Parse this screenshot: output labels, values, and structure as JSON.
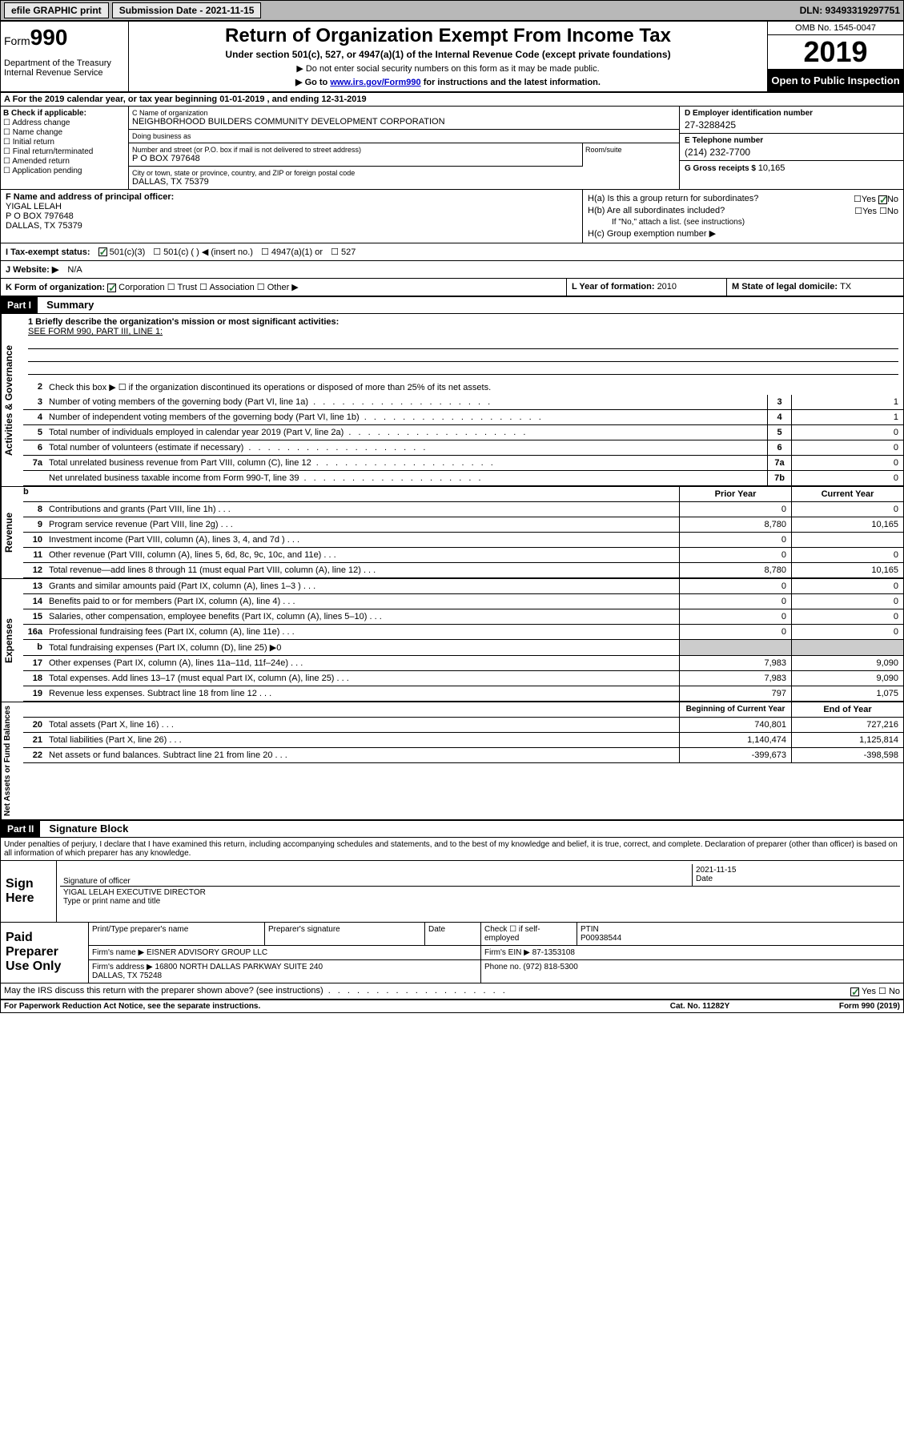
{
  "topbar": {
    "efile": "efile GRAPHIC print",
    "submission_label": "Submission Date - 2021-11-15",
    "dln": "DLN: 93493319297751"
  },
  "header": {
    "form_prefix": "Form",
    "form_number": "990",
    "dept": "Department of the Treasury\nInternal Revenue Service",
    "title": "Return of Organization Exempt From Income Tax",
    "subtitle": "Under section 501(c), 527, or 4947(a)(1) of the Internal Revenue Code (except private foundations)",
    "nosn": "▶ Do not enter social security numbers on this form as it may be made public.",
    "goto_pre": "▶ Go to ",
    "goto_link": "www.irs.gov/Form990",
    "goto_post": " for instructions and the latest information.",
    "omb": "OMB No. 1545-0047",
    "year": "2019",
    "public": "Open to Public Inspection"
  },
  "yearline": "A For the 2019 calendar year, or tax year beginning 01-01-2019    , and ending 12-31-2019",
  "B": {
    "hdr": "B Check if applicable:",
    "items": [
      "Address change",
      "Name change",
      "Initial return",
      "Final return/terminated",
      "Amended return",
      "Application pending"
    ]
  },
  "C": {
    "name_lbl": "C Name of organization",
    "name": "NEIGHBORHOOD BUILDERS COMMUNITY DEVELOPMENT CORPORATION",
    "dba_lbl": "Doing business as",
    "dba": "",
    "street_lbl": "Number and street (or P.O. box if mail is not delivered to street address)",
    "street": "P O BOX 797648",
    "suite_lbl": "Room/suite",
    "city_lbl": "City or town, state or province, country, and ZIP or foreign postal code",
    "city": "DALLAS, TX  75379"
  },
  "D": {
    "lbl": "D Employer identification number",
    "val": "27-3288425"
  },
  "E": {
    "lbl": "E Telephone number",
    "val": "(214) 232-7700"
  },
  "G": {
    "lbl": "G Gross receipts $ ",
    "val": "10,165"
  },
  "F": {
    "lbl": "F Name and address of principal officer:",
    "name": "YIGAL LELAH",
    "addr1": "P O BOX 797648",
    "addr2": "DALLAS, TX  75379"
  },
  "H": {
    "a": "H(a)  Is this a group return for subordinates?",
    "a_yes": "Yes",
    "a_no": "No",
    "b": "H(b)  Are all subordinates included?",
    "b_note": "If \"No,\" attach a list. (see instructions)",
    "c": "H(c)  Group exemption number ▶"
  },
  "I": {
    "lbl": "I   Tax-exempt status:",
    "o1": "501(c)(3)",
    "o2": "501(c) (  ) ◀ (insert no.)",
    "o3": "4947(a)(1) or",
    "o4": "527"
  },
  "J": {
    "lbl": "J   Website: ▶",
    "val": "N/A"
  },
  "K": {
    "lbl": "K Form of organization:",
    "o1": "Corporation",
    "o2": "Trust",
    "o3": "Association",
    "o4": "Other ▶"
  },
  "L": {
    "lbl": "L Year of formation: ",
    "val": "2010"
  },
  "M": {
    "lbl": "M State of legal domicile: ",
    "val": "TX"
  },
  "partI": {
    "hdr": "Part I",
    "title": "Summary",
    "mission_lbl": "1   Briefly describe the organization's mission or most significant activities:",
    "mission": "SEE FORM 990, PART III, LINE 1:",
    "line2": "Check this box ▶ ☐  if the organization discontinued its operations or disposed of more than 25% of its net assets.",
    "sections": {
      "gov": "Activities & Governance",
      "rev": "Revenue",
      "exp": "Expenses",
      "net": "Net Assets or Fund Balances"
    },
    "gov_lines": [
      {
        "n": "3",
        "t": "Number of voting members of the governing body (Part VI, line 1a)",
        "box": "3",
        "v": "1"
      },
      {
        "n": "4",
        "t": "Number of independent voting members of the governing body (Part VI, line 1b)",
        "box": "4",
        "v": "1"
      },
      {
        "n": "5",
        "t": "Total number of individuals employed in calendar year 2019 (Part V, line 2a)",
        "box": "5",
        "v": "0"
      },
      {
        "n": "6",
        "t": "Total number of volunteers (estimate if necessary)",
        "box": "6",
        "v": "0"
      },
      {
        "n": "7a",
        "t": "Total unrelated business revenue from Part VIII, column (C), line 12",
        "box": "7a",
        "v": "0"
      },
      {
        "n": "",
        "t": "Net unrelated business taxable income from Form 990-T, line 39",
        "box": "7b",
        "v": "0"
      }
    ],
    "revhdr": {
      "prior": "Prior Year",
      "current": "Current Year"
    },
    "rev_lines": [
      {
        "n": "8",
        "t": "Contributions and grants (Part VIII, line 1h)",
        "p": "0",
        "c": "0"
      },
      {
        "n": "9",
        "t": "Program service revenue (Part VIII, line 2g)",
        "p": "8,780",
        "c": "10,165"
      },
      {
        "n": "10",
        "t": "Investment income (Part VIII, column (A), lines 3, 4, and 7d )",
        "p": "0",
        "c": ""
      },
      {
        "n": "11",
        "t": "Other revenue (Part VIII, column (A), lines 5, 6d, 8c, 9c, 10c, and 11e)",
        "p": "0",
        "c": "0"
      },
      {
        "n": "12",
        "t": "Total revenue—add lines 8 through 11 (must equal Part VIII, column (A), line 12)",
        "p": "8,780",
        "c": "10,165"
      }
    ],
    "exp_lines": [
      {
        "n": "13",
        "t": "Grants and similar amounts paid (Part IX, column (A), lines 1–3 )",
        "p": "0",
        "c": "0"
      },
      {
        "n": "14",
        "t": "Benefits paid to or for members (Part IX, column (A), line 4)",
        "p": "0",
        "c": "0"
      },
      {
        "n": "15",
        "t": "Salaries, other compensation, employee benefits (Part IX, column (A), lines 5–10)",
        "p": "0",
        "c": "0"
      },
      {
        "n": "16a",
        "t": "Professional fundraising fees (Part IX, column (A), line 11e)",
        "p": "0",
        "c": "0"
      },
      {
        "n": "b",
        "t": "Total fundraising expenses (Part IX, column (D), line 25) ▶0",
        "p": "",
        "c": "",
        "shade": true
      },
      {
        "n": "17",
        "t": "Other expenses (Part IX, column (A), lines 11a–11d, 11f–24e)",
        "p": "7,983",
        "c": "9,090"
      },
      {
        "n": "18",
        "t": "Total expenses. Add lines 13–17 (must equal Part IX, column (A), line 25)",
        "p": "7,983",
        "c": "9,090"
      },
      {
        "n": "19",
        "t": "Revenue less expenses. Subtract line 18 from line 12",
        "p": "797",
        "c": "1,075"
      }
    ],
    "nethdr": {
      "prior": "Beginning of Current Year",
      "current": "End of Year"
    },
    "net_lines": [
      {
        "n": "20",
        "t": "Total assets (Part X, line 16)",
        "p": "740,801",
        "c": "727,216"
      },
      {
        "n": "21",
        "t": "Total liabilities (Part X, line 26)",
        "p": "1,140,474",
        "c": "1,125,814"
      },
      {
        "n": "22",
        "t": "Net assets or fund balances. Subtract line 21 from line 20",
        "p": "-399,673",
        "c": "-398,598"
      }
    ]
  },
  "partII": {
    "hdr": "Part II",
    "title": "Signature Block",
    "penalties": "Under penalties of perjury, I declare that I have examined this return, including accompanying schedules and statements, and to the best of my knowledge and belief, it is true, correct, and complete. Declaration of preparer (other than officer) is based on all information of which preparer has any knowledge.",
    "sign_lbl": "Sign Here",
    "sig_officer": "Signature of officer",
    "sig_date": "2021-11-15",
    "sig_date_lbl": "Date",
    "sig_name": "YIGAL LELAH  EXECUTIVE DIRECTOR",
    "sig_name_lbl": "Type or print name and title",
    "paid_lbl": "Paid Preparer Use Only",
    "prep_name_lbl": "Print/Type preparer's name",
    "prep_sig_lbl": "Preparer's signature",
    "prep_date_lbl": "Date",
    "prep_self": "Check ☐ if self-employed",
    "ptin_lbl": "PTIN",
    "ptin": "P00938544",
    "firm_name_lbl": "Firm's name    ▶",
    "firm_name": "EISNER ADVISORY GROUP LLC",
    "firm_ein_lbl": "Firm's EIN ▶",
    "firm_ein": "87-1353108",
    "firm_addr_lbl": "Firm's address ▶",
    "firm_addr": "16800 NORTH DALLAS PARKWAY SUITE 240\nDALLAS, TX  75248",
    "firm_phone_lbl": "Phone no.",
    "firm_phone": "(972) 818-5300",
    "discuss": "May the IRS discuss this return with the preparer shown above? (see instructions)",
    "discuss_yes": "Yes",
    "discuss_no": "No"
  },
  "footer": {
    "pra": "For Paperwork Reduction Act Notice, see the separate instructions.",
    "cat": "Cat. No. 11282Y",
    "form": "Form 990 (2019)"
  }
}
